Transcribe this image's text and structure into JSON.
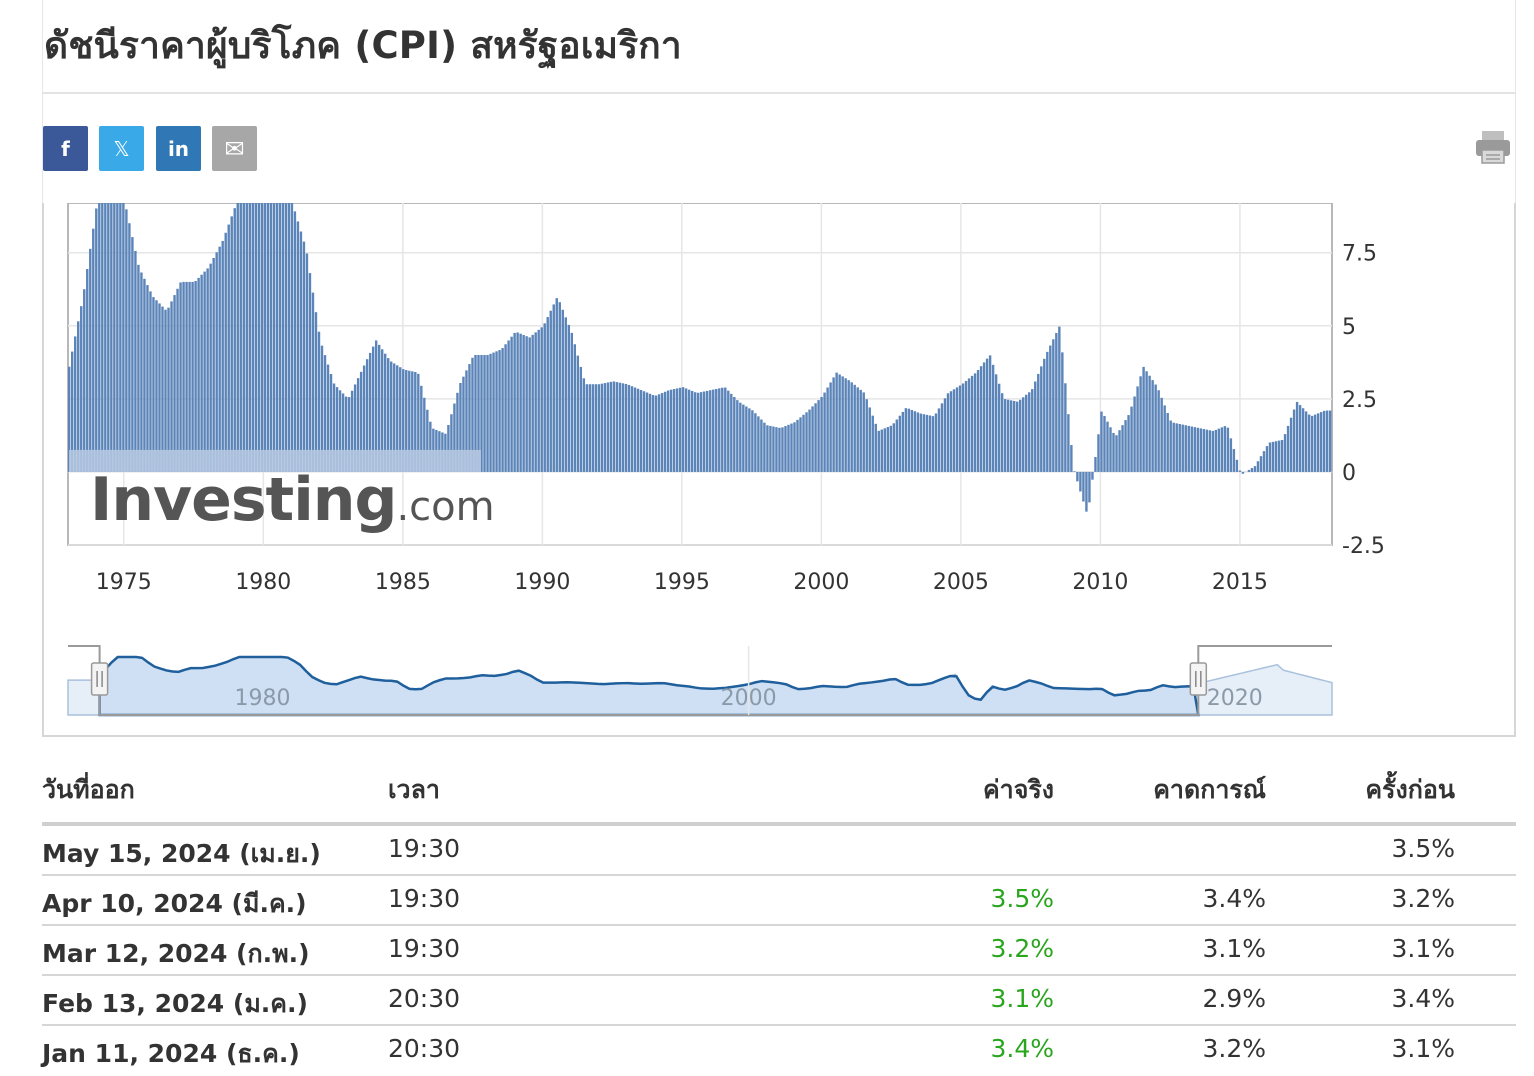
{
  "page": {
    "title": "ดัชนีราคาผู้บริโภค (CPI) สหรัฐอเมริกา"
  },
  "share": {
    "facebook": {
      "label": "f",
      "color": "#3b5998",
      "icon": "facebook-icon"
    },
    "twitter": {
      "label": "𝕏",
      "color": "#3aa9e8",
      "icon": "x-icon"
    },
    "linkedin": {
      "label": "in",
      "color": "#2f78b5",
      "icon": "linkedin-icon"
    },
    "email": {
      "label": "✉",
      "color": "#a7a7a7",
      "icon": "email-icon"
    },
    "print": {
      "icon": "printer-icon"
    }
  },
  "chart_data": {
    "type": "bar",
    "title": "",
    "xlabel": "",
    "ylabel": "",
    "x_tick_labels": [
      "1975",
      "1980",
      "1985",
      "1990",
      "1995",
      "2000",
      "2005",
      "2010",
      "2015"
    ],
    "y_tick_labels": [
      "7.5",
      "5",
      "2.5",
      "0",
      "-2.5"
    ],
    "y_ticks": [
      7.5,
      5,
      2.5,
      0,
      -2.5
    ],
    "ylim": [
      -2.5,
      9.2
    ],
    "xlim": [
      1973.0,
      2018.3
    ],
    "grid": true,
    "legend": "none",
    "series": [
      {
        "color": "#5b84b9",
        "x": [
          1973.0,
          1973.5,
          1974.0,
          1974.5,
          1975.0,
          1975.5,
          1976.0,
          1976.5,
          1977.0,
          1977.5,
          1978.0,
          1978.5,
          1979.0,
          1979.5,
          1980.0,
          1980.5,
          1981.0,
          1981.5,
          1982.0,
          1982.5,
          1983.0,
          1983.5,
          1984.0,
          1984.5,
          1985.0,
          1985.5,
          1986.0,
          1986.5,
          1987.0,
          1987.5,
          1988.0,
          1988.5,
          1989.0,
          1989.5,
          1990.0,
          1990.5,
          1991.0,
          1991.5,
          1992.0,
          1992.5,
          1993.0,
          1993.5,
          1994.0,
          1994.5,
          1995.0,
          1995.5,
          1996.0,
          1996.5,
          1997.0,
          1997.5,
          1998.0,
          1998.5,
          1999.0,
          1999.5,
          2000.0,
          2000.5,
          2001.0,
          2001.5,
          2002.0,
          2002.5,
          2003.0,
          2003.5,
          2004.0,
          2004.5,
          2005.0,
          2005.5,
          2006.0,
          2006.5,
          2007.0,
          2007.5,
          2008.0,
          2008.5,
          2009.0,
          2009.5,
          2010.0,
          2010.5,
          2011.0,
          2011.5,
          2012.0,
          2012.5,
          2013.0,
          2013.5,
          2014.0,
          2014.5,
          2015.0,
          2015.5,
          2016.0,
          2016.5,
          2017.0,
          2017.5,
          2018.0
        ],
        "values": [
          3.6,
          6.0,
          9.2,
          9.2,
          9.2,
          7.0,
          6.0,
          5.5,
          6.5,
          6.5,
          7.0,
          7.9,
          9.2,
          9.2,
          9.2,
          9.2,
          9.2,
          7.6,
          4.5,
          3.0,
          2.5,
          3.5,
          4.5,
          3.8,
          3.5,
          3.4,
          1.5,
          1.3,
          3.0,
          4.0,
          4.0,
          4.2,
          4.8,
          4.6,
          5.0,
          6.0,
          4.8,
          3.0,
          3.0,
          3.1,
          3.0,
          2.8,
          2.6,
          2.8,
          2.9,
          2.7,
          2.8,
          2.9,
          2.4,
          2.1,
          1.6,
          1.5,
          1.7,
          2.1,
          2.6,
          3.4,
          3.1,
          2.7,
          1.4,
          1.6,
          2.2,
          2.0,
          1.9,
          2.7,
          3.0,
          3.4,
          4.0,
          2.5,
          2.4,
          2.8,
          4.0,
          5.0,
          0.1,
          -1.5,
          2.1,
          1.2,
          2.0,
          3.6,
          2.9,
          1.7,
          1.6,
          1.5,
          1.4,
          1.6,
          -0.1,
          0.2,
          1.0,
          1.1,
          2.4,
          1.9,
          2.1
        ]
      }
    ],
    "navigator": {
      "x_tick_labels": [
        "1980",
        "2000",
        "2020"
      ]
    }
  },
  "watermark": {
    "brand": "Investing",
    "suffix": ".com"
  },
  "table": {
    "headers": {
      "date": "วันที่ออก",
      "time": "เวลา",
      "actual": "ค่าจริง",
      "forecast": "คาดการณ์",
      "previous": "ครั้งก่อน"
    },
    "rows": [
      {
        "date": "May 15, 2024 (เม.ย.)",
        "time": "19:30",
        "actual": "",
        "forecast": "",
        "previous": "3.5%"
      },
      {
        "date": "Apr 10, 2024 (มี.ค.)",
        "time": "19:30",
        "actual": "3.5%",
        "forecast": "3.4%",
        "previous": "3.2%"
      },
      {
        "date": "Mar 12, 2024 (ก.พ.)",
        "time": "19:30",
        "actual": "3.2%",
        "forecast": "3.1%",
        "previous": "3.1%"
      },
      {
        "date": "Feb 13, 2024 (ม.ค.)",
        "time": "20:30",
        "actual": "3.1%",
        "forecast": "2.9%",
        "previous": "3.4%"
      },
      {
        "date": "Jan 11, 2024 (ธ.ค.)",
        "time": "20:30",
        "actual": "3.4%",
        "forecast": "3.2%",
        "previous": "3.1%"
      }
    ]
  }
}
